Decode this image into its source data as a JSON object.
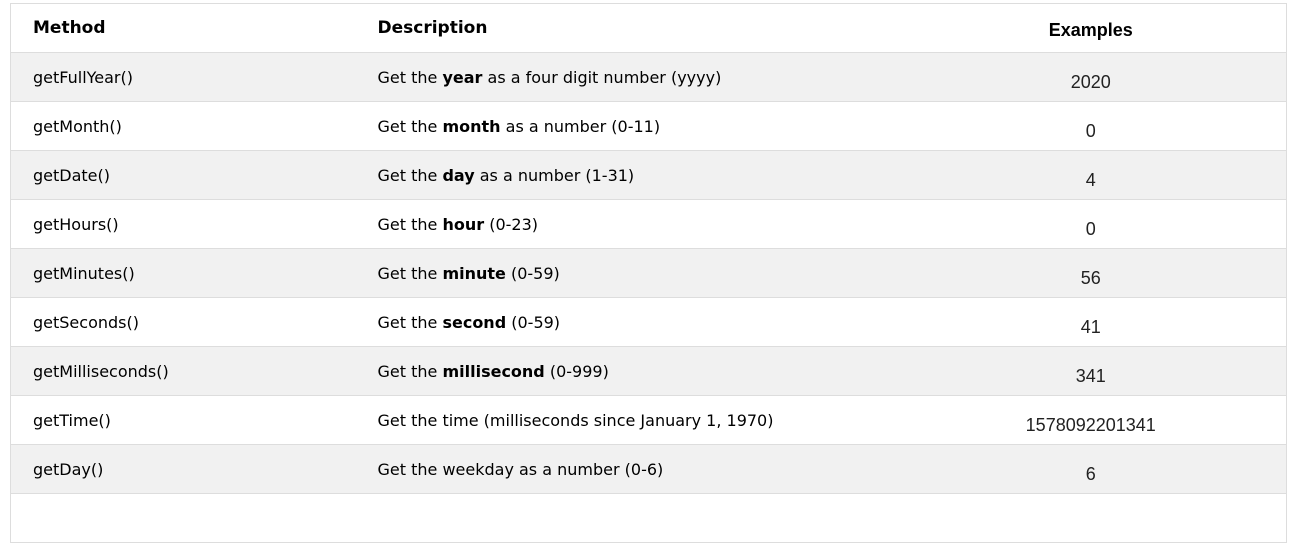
{
  "page": {
    "background": "#ffffff"
  },
  "colors": {
    "row_stripe": "#f1f1f1",
    "border": "#dddddd",
    "header_text": "#000000",
    "body_text": "#000000",
    "example_text": "#222222"
  },
  "table": {
    "columns": [
      {
        "id": "method",
        "label": "Method",
        "align": "left"
      },
      {
        "id": "description",
        "label": "Description",
        "align": "left"
      },
      {
        "id": "examples",
        "label": "Examples",
        "align": "center"
      }
    ],
    "rows": [
      {
        "method": "getFullYear()",
        "description": {
          "pre": "Get the ",
          "bold": "year",
          "post": " as a four digit number (yyyy)"
        },
        "example": "2020"
      },
      {
        "method": "getMonth()",
        "description": {
          "pre": "Get the ",
          "bold": "month",
          "post": " as a number (0-11)"
        },
        "example": "0"
      },
      {
        "method": "getDate()",
        "description": {
          "pre": "Get the ",
          "bold": "day",
          "post": " as a number (1-31)"
        },
        "example": "4"
      },
      {
        "method": "getHours()",
        "description": {
          "pre": "Get the ",
          "bold": "hour",
          "post": " (0-23)"
        },
        "example": "0"
      },
      {
        "method": "getMinutes()",
        "description": {
          "pre": "Get the ",
          "bold": "minute",
          "post": " (0-59)"
        },
        "example": "56"
      },
      {
        "method": "getSeconds()",
        "description": {
          "pre": "Get the ",
          "bold": "second",
          "post": " (0-59)"
        },
        "example": "41"
      },
      {
        "method": "getMilliseconds()",
        "description": {
          "pre": "Get the ",
          "bold": "millisecond",
          "post": " (0-999)"
        },
        "example": "341"
      },
      {
        "method": "getTime()",
        "description": {
          "pre": "Get the time (milliseconds since January 1, 1970)",
          "bold": "",
          "post": ""
        },
        "example": "1578092201341"
      },
      {
        "method": "getDay()",
        "description": {
          "pre": "Get the weekday as a number (0-6)",
          "bold": "",
          "post": ""
        },
        "example": "6"
      }
    ],
    "partial_next_row_visible": true
  }
}
